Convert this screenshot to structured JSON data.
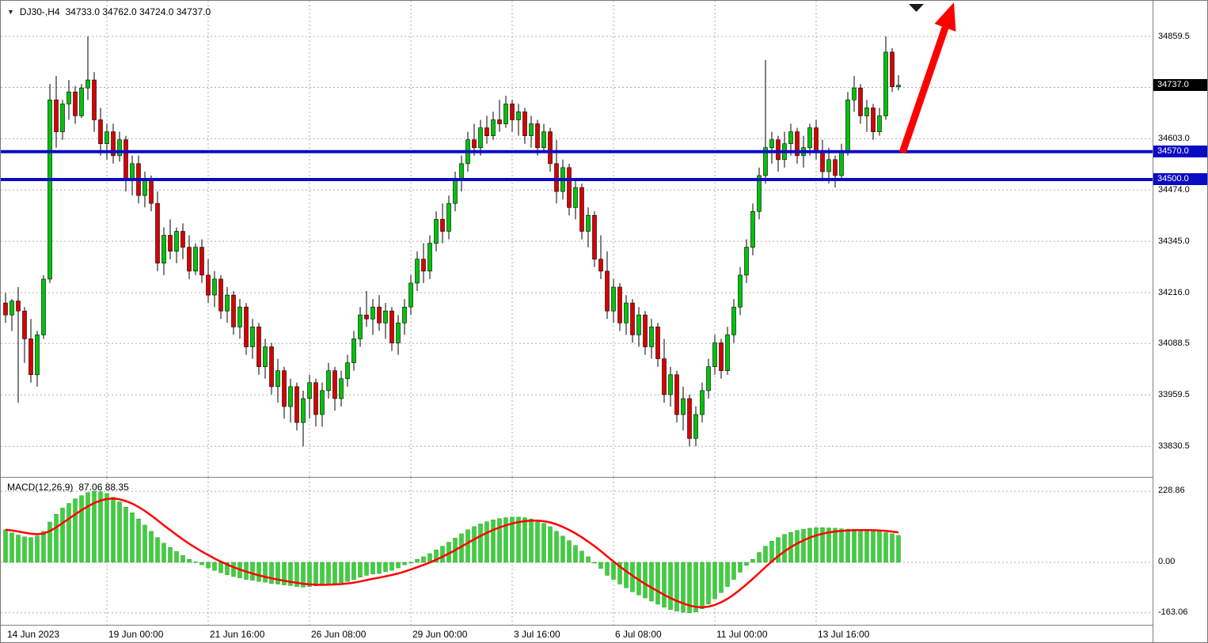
{
  "header": {
    "symbol": "DJ30-,H4",
    "ohlc_text": "34733.0 34762.0 34724.0 34737.0"
  },
  "colors": {
    "bull": "#00C40A",
    "bear": "#D90000",
    "wick": "#000000",
    "macd_bar": "#3BD23B",
    "signal": "#FF0000",
    "level": "#0B0BC4",
    "grid": "#ADADAD",
    "tag_current_bg": "#000000",
    "tag_text": "#FFFFFF",
    "arrow": "#FF0000",
    "shift_marker": "#1A1A1A"
  },
  "price_axis": {
    "labels": [
      {
        "text": "34859.5",
        "price": 34859.5
      },
      {
        "text": "34603.0",
        "price": 34603.0
      },
      {
        "text": "34474.0",
        "price": 34474.0
      },
      {
        "text": "34345.0",
        "price": 34345.0
      },
      {
        "text": "34216.0",
        "price": 34216.0
      },
      {
        "text": "34088.5",
        "price": 34088.5
      },
      {
        "text": "33959.5",
        "price": 33959.5
      },
      {
        "text": "33830.5",
        "price": 33830.5
      }
    ],
    "current_tag": {
      "text": "34737.0",
      "price": 34737.0
    },
    "level_tags": [
      {
        "text": "34570.0",
        "price": 34570.0
      },
      {
        "text": "34500.0",
        "price": 34500.0
      }
    ]
  },
  "time_axis": {
    "ticks": [
      {
        "label": "14 Jun 2023",
        "index": 0
      },
      {
        "label": "19 Jun 00:00",
        "index": 16
      },
      {
        "label": "21 Jun 16:00",
        "index": 32
      },
      {
        "label": "26 Jun 08:00",
        "index": 48
      },
      {
        "label": "29 Jun 00:00",
        "index": 64
      },
      {
        "label": "3 Jul 16:00",
        "index": 80
      },
      {
        "label": "6 Jul 08:00",
        "index": 96
      },
      {
        "label": "11 Jul 00:00",
        "index": 112
      },
      {
        "label": "13 Jul 16:00",
        "index": 128
      }
    ]
  },
  "macd_panel": {
    "name": "MACD(12,26,9)",
    "values": "87.06 88.35",
    "axis_labels": [
      {
        "text": "228.86",
        "value": 228.86
      },
      {
        "text": "0.00",
        "value": 0
      },
      {
        "text": "-163.06",
        "value": -163.06
      }
    ]
  },
  "chart_data": [
    {
      "type": "candlestick",
      "title": "DJ30- H4",
      "ylim": [
        33766,
        34950
      ],
      "grid_prices": [
        34859.5,
        34731.5,
        34603.0,
        34474.0,
        34345.0,
        34216.0,
        34088.5,
        33959.5,
        33830.5
      ],
      "levels": [
        34570.0,
        34500.0
      ],
      "current_price": 34737.0,
      "ohlc": [
        [
          34190,
          34215,
          34140,
          34160
        ],
        [
          34160,
          34200,
          34120,
          34195
        ],
        [
          34195,
          34230,
          33940,
          34170
        ],
        [
          34170,
          34180,
          34040,
          34100
        ],
        [
          34100,
          34150,
          33990,
          34010
        ],
        [
          34010,
          34120,
          33980,
          34110
        ],
        [
          34110,
          34260,
          34100,
          34250
        ],
        [
          34250,
          34740,
          34240,
          34700
        ],
        [
          34700,
          34760,
          34580,
          34620
        ],
        [
          34620,
          34700,
          34600,
          34690
        ],
        [
          34690,
          34750,
          34650,
          34720
        ],
        [
          34720,
          34735,
          34640,
          34660
        ],
        [
          34660,
          34740,
          34655,
          34730
        ],
        [
          34730,
          34860,
          34700,
          34750
        ],
        [
          34750,
          34770,
          34620,
          34650
        ],
        [
          34650,
          34680,
          34560,
          34590
        ],
        [
          34590,
          34640,
          34550,
          34620
        ],
        [
          34620,
          34640,
          34540,
          34560
        ],
        [
          34560,
          34620,
          34545,
          34600
        ],
        [
          34600,
          34610,
          34470,
          34500
        ],
        [
          34500,
          34560,
          34460,
          34540
        ],
        [
          34540,
          34560,
          34440,
          34460
        ],
        [
          34460,
          34520,
          34430,
          34500
        ],
        [
          34500,
          34510,
          34420,
          34440
        ],
        [
          34440,
          34470,
          34270,
          34290
        ],
        [
          34290,
          34380,
          34260,
          34360
        ],
        [
          34360,
          34400,
          34300,
          34320
        ],
        [
          34320,
          34380,
          34290,
          34370
        ],
        [
          34370,
          34390,
          34300,
          34330
        ],
        [
          34330,
          34360,
          34250,
          34270
        ],
        [
          34270,
          34340,
          34260,
          34330
        ],
        [
          34330,
          34350,
          34240,
          34260
        ],
        [
          34260,
          34300,
          34190,
          34210
        ],
        [
          34210,
          34270,
          34180,
          34250
        ],
        [
          34250,
          34260,
          34150,
          34170
        ],
        [
          34170,
          34230,
          34140,
          34210
        ],
        [
          34210,
          34220,
          34110,
          34130
        ],
        [
          34130,
          34200,
          34100,
          34180
        ],
        [
          34180,
          34190,
          34060,
          34080
        ],
        [
          34080,
          34150,
          34050,
          34130
        ],
        [
          34130,
          34140,
          34010,
          34030
        ],
        [
          34030,
          34100,
          34000,
          34080
        ],
        [
          34080,
          34090,
          33960,
          33980
        ],
        [
          33980,
          34050,
          33940,
          34020
        ],
        [
          34020,
          34030,
          33900,
          33930
        ],
        [
          33930,
          34000,
          33890,
          33980
        ],
        [
          33980,
          33990,
          33870,
          33890
        ],
        [
          33890,
          33970,
          33830,
          33950
        ],
        [
          33950,
          34010,
          33900,
          33990
        ],
        [
          33990,
          34000,
          33880,
          33910
        ],
        [
          33910,
          33990,
          33880,
          33970
        ],
        [
          33970,
          34040,
          33950,
          34020
        ],
        [
          34020,
          34030,
          33920,
          33950
        ],
        [
          33950,
          34020,
          33930,
          34000
        ],
        [
          34000,
          34060,
          33980,
          34040
        ],
        [
          34040,
          34120,
          34020,
          34100
        ],
        [
          34100,
          34180,
          34080,
          34160
        ],
        [
          34160,
          34220,
          34130,
          34150
        ],
        [
          34150,
          34200,
          34110,
          34180
        ],
        [
          34180,
          34210,
          34120,
          34140
        ],
        [
          34140,
          34190,
          34100,
          34170
        ],
        [
          34170,
          34180,
          34070,
          34090
        ],
        [
          34090,
          34160,
          34060,
          34140
        ],
        [
          34140,
          34200,
          34110,
          34180
        ],
        [
          34180,
          34260,
          34160,
          34240
        ],
        [
          34240,
          34320,
          34220,
          34300
        ],
        [
          34300,
          34340,
          34240,
          34270
        ],
        [
          34270,
          34360,
          34250,
          34340
        ],
        [
          34340,
          34420,
          34320,
          34400
        ],
        [
          34400,
          34440,
          34340,
          34370
        ],
        [
          34370,
          34460,
          34350,
          34440
        ],
        [
          34440,
          34520,
          34420,
          34500
        ],
        [
          34500,
          34560,
          34470,
          34540
        ],
        [
          34540,
          34620,
          34520,
          34600
        ],
        [
          34600,
          34640,
          34560,
          34580
        ],
        [
          34580,
          34650,
          34560,
          34630
        ],
        [
          34630,
          34660,
          34590,
          34610
        ],
        [
          34610,
          34670,
          34600,
          34650
        ],
        [
          34650,
          34700,
          34620,
          34640
        ],
        [
          34640,
          34710,
          34630,
          34690
        ],
        [
          34690,
          34700,
          34620,
          34650
        ],
        [
          34650,
          34690,
          34610,
          34670
        ],
        [
          34670,
          34680,
          34590,
          34610
        ],
        [
          34610,
          34660,
          34580,
          34640
        ],
        [
          34640,
          34650,
          34560,
          34580
        ],
        [
          34580,
          34640,
          34570,
          34620
        ],
        [
          34620,
          34630,
          34520,
          34540
        ],
        [
          34540,
          34600,
          34440,
          34470
        ],
        [
          34470,
          34550,
          34450,
          34530
        ],
        [
          34530,
          34540,
          34410,
          34430
        ],
        [
          34430,
          34500,
          34400,
          34480
        ],
        [
          34480,
          34490,
          34350,
          34370
        ],
        [
          34370,
          34430,
          34330,
          34410
        ],
        [
          34410,
          34420,
          34280,
          34300
        ],
        [
          34300,
          34360,
          34250,
          34270
        ],
        [
          34270,
          34320,
          34150,
          34170
        ],
        [
          34170,
          34250,
          34140,
          34230
        ],
        [
          34230,
          34240,
          34120,
          34140
        ],
        [
          34140,
          34210,
          34110,
          34190
        ],
        [
          34190,
          34200,
          34090,
          34110
        ],
        [
          34110,
          34180,
          34080,
          34160
        ],
        [
          34160,
          34170,
          34060,
          34080
        ],
        [
          34080,
          34150,
          34050,
          34130
        ],
        [
          34130,
          34140,
          34030,
          34050
        ],
        [
          34050,
          34100,
          33940,
          33960
        ],
        [
          33960,
          34030,
          33930,
          34010
        ],
        [
          34010,
          34020,
          33890,
          33910
        ],
        [
          33910,
          33980,
          33870,
          33950
        ],
        [
          33950,
          33960,
          33830,
          33850
        ],
        [
          33850,
          33930,
          33830,
          33910
        ],
        [
          33910,
          33990,
          33890,
          33970
        ],
        [
          33970,
          34050,
          33950,
          34030
        ],
        [
          34030,
          34110,
          34010,
          34090
        ],
        [
          34090,
          34100,
          34000,
          34020
        ],
        [
          34020,
          34130,
          34010,
          34110
        ],
        [
          34110,
          34200,
          34090,
          34180
        ],
        [
          34180,
          34280,
          34160,
          34260
        ],
        [
          34260,
          34350,
          34240,
          34330
        ],
        [
          34330,
          34440,
          34310,
          34420
        ],
        [
          34420,
          34530,
          34400,
          34510
        ],
        [
          34510,
          34800,
          34490,
          34580
        ],
        [
          34580,
          34620,
          34540,
          34600
        ],
        [
          34600,
          34610,
          34520,
          34550
        ],
        [
          34550,
          34620,
          34530,
          34590
        ],
        [
          34590,
          34640,
          34560,
          34620
        ],
        [
          34620,
          34630,
          34540,
          34560
        ],
        [
          34560,
          34610,
          34530,
          34580
        ],
        [
          34580,
          34640,
          34560,
          34630
        ],
        [
          34630,
          34650,
          34550,
          34570
        ],
        [
          34570,
          34600,
          34500,
          34520
        ],
        [
          34520,
          34580,
          34490,
          34550
        ],
        [
          34550,
          34560,
          34480,
          34510
        ],
        [
          34510,
          34590,
          34500,
          34570
        ],
        [
          34570,
          34720,
          34560,
          34700
        ],
        [
          34700,
          34760,
          34670,
          34730
        ],
        [
          34730,
          34740,
          34640,
          34660
        ],
        [
          34660,
          34700,
          34620,
          34680
        ],
        [
          34680,
          34690,
          34600,
          34620
        ],
        [
          34620,
          34680,
          34610,
          34660
        ],
        [
          34660,
          34860,
          34650,
          34820
        ],
        [
          34820,
          34830,
          34720,
          34733
        ],
        [
          34733,
          34762,
          34724,
          34737
        ]
      ]
    },
    {
      "type": "bar",
      "title": "MACD(12,26,9)",
      "ylim": [
        -207,
        266
      ],
      "last_hist": 87.06,
      "last_signal": 88.35,
      "values": [
        105,
        95,
        88,
        82,
        80,
        85,
        100,
        130,
        155,
        175,
        190,
        205,
        215,
        225,
        229,
        228,
        222,
        210,
        195,
        178,
        160,
        140,
        120,
        100,
        80,
        62,
        48,
        35,
        22,
        10,
        2,
        -8,
        -18,
        -26,
        -34,
        -40,
        -46,
        -50,
        -55,
        -58,
        -62,
        -64,
        -68,
        -70,
        -73,
        -75,
        -78,
        -80,
        -78,
        -76,
        -74,
        -70,
        -68,
        -66,
        -62,
        -56,
        -48,
        -42,
        -38,
        -36,
        -30,
        -26,
        -18,
        -8,
        0,
        10,
        18,
        28,
        40,
        52,
        65,
        78,
        92,
        105,
        115,
        124,
        131,
        137,
        141,
        144,
        146,
        146,
        144,
        140,
        134,
        126,
        115,
        100,
        85,
        70,
        54,
        36,
        18,
        0,
        -20,
        -42,
        -55,
        -70,
        -82,
        -95,
        -105,
        -115,
        -125,
        -135,
        -145,
        -152,
        -157,
        -161,
        -163,
        -160,
        -150,
        -135,
        -118,
        -98,
        -78,
        -55,
        -32,
        -10,
        10,
        32,
        52,
        68,
        80,
        90,
        97,
        103,
        107,
        110,
        112,
        112,
        111,
        110,
        108,
        107,
        107,
        106,
        104,
        102,
        100,
        96,
        92,
        87
      ]
    }
  ]
}
